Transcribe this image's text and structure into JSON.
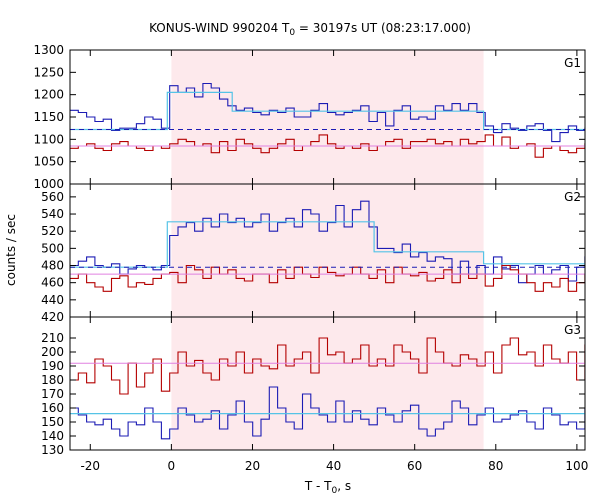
{
  "chart_data": {
    "title": "KONUS-WIND 990204 T",
    "title_sub": "0",
    "title_rest": " = 30197s UT (08:23:17.000)",
    "ylabel": "counts / sec",
    "xlabel": "T - T",
    "xlabel_sub": "0",
    "xlabel_rest": ", s",
    "xlim": [
      -25,
      102
    ],
    "xticks": [
      -20,
      0,
      20,
      40,
      60,
      80,
      100
    ],
    "shaded_interval": [
      0,
      77
    ],
    "colors": {
      "blue": "#1c1cb4",
      "red": "#b40000",
      "fit": "#55c3e6",
      "bg": "#e080e0",
      "dash": "#1c1cb4",
      "shade": "#fde9ec"
    },
    "panels": [
      {
        "name": "G1",
        "type": "line",
        "ylim": [
          1000,
          1300
        ],
        "yticks": [
          1000,
          1050,
          1100,
          1150,
          1200,
          1250,
          1300
        ],
        "series": [
          {
            "color": "blue",
            "x0": -25,
            "dt": 2.048,
            "values": [
              1165,
              1160,
              1150,
              1140,
              1145,
              1120,
              1125,
              1125,
              1135,
              1150,
              1145,
              1125,
              1220,
              1205,
              1215,
              1195,
              1225,
              1215,
              1190,
              1175,
              1165,
              1170,
              1160,
              1155,
              1165,
              1160,
              1170,
              1150,
              1150,
              1165,
              1180,
              1160,
              1155,
              1160,
              1165,
              1175,
              1140,
              1160,
              1130,
              1165,
              1175,
              1145,
              1150,
              1145,
              1175,
              1165,
              1180,
              1165,
              1180,
              1160,
              1130,
              1115,
              1135,
              1125,
              1120,
              1130,
              1135,
              1120,
              1095,
              1115,
              1130,
              1120,
              1125
            ]
          },
          {
            "color": "red",
            "x0": -25,
            "dt": 2.048,
            "values": [
              1080,
              1085,
              1090,
              1080,
              1075,
              1090,
              1095,
              1085,
              1080,
              1075,
              1085,
              1080,
              1090,
              1100,
              1095,
              1085,
              1090,
              1070,
              1095,
              1075,
              1100,
              1090,
              1080,
              1070,
              1080,
              1090,
              1100,
              1075,
              1085,
              1095,
              1110,
              1090,
              1080,
              1085,
              1080,
              1090,
              1075,
              1085,
              1095,
              1100,
              1080,
              1095,
              1095,
              1100,
              1090,
              1095,
              1085,
              1100,
              1090,
              1095,
              1110,
              1085,
              1105,
              1080,
              1085,
              1090,
              1060,
              1080,
              1085,
              1075,
              1070,
              1080,
              1090
            ]
          },
          {
            "color": "fit",
            "steps": [
              [
                -25,
                -1,
                1122
              ],
              [
                -1,
                15,
                1205
              ],
              [
                15,
                77,
                1163
              ],
              [
                77,
                102,
                1122
              ]
            ]
          },
          {
            "color": "bg",
            "flat": 1085
          },
          {
            "color": "dash",
            "flat": 1122,
            "dashed": true
          }
        ]
      },
      {
        "name": "G2",
        "type": "line",
        "ylim": [
          420,
          575
        ],
        "yticks": [
          420,
          440,
          460,
          480,
          500,
          520,
          540,
          560
        ],
        "series": [
          {
            "color": "blue",
            "x0": -25,
            "dt": 2.048,
            "values": [
              480,
              485,
              490,
              480,
              478,
              482,
              470,
              476,
              480,
              478,
              475,
              480,
              515,
              525,
              530,
              520,
              535,
              525,
              540,
              530,
              535,
              525,
              530,
              540,
              520,
              530,
              535,
              525,
              545,
              540,
              520,
              530,
              550,
              525,
              545,
              555,
              525,
              500,
              500,
              495,
              505,
              490,
              495,
              485,
              490,
              488,
              470,
              485,
              470,
              480,
              470,
              490,
              476,
              480,
              460,
              470,
              480,
              470,
              475,
              480,
              462,
              478,
              490
            ]
          },
          {
            "color": "red",
            "x0": -25,
            "dt": 2.048,
            "values": [
              465,
              470,
              460,
              455,
              450,
              465,
              468,
              455,
              460,
              458,
              465,
              470,
              472,
              460,
              480,
              475,
              465,
              478,
              470,
              475,
              465,
              462,
              470,
              470,
              460,
              475,
              465,
              478,
              470,
              466,
              478,
              472,
              468,
              470,
              478,
              470,
              465,
              475,
              460,
              478,
              470,
              468,
              472,
              462,
              465,
              475,
              460,
              470,
              465,
              470,
              456,
              465,
              480,
              475,
              470,
              460,
              450,
              460,
              455,
              465,
              450,
              460,
              470
            ]
          },
          {
            "color": "fit",
            "steps": [
              [
                -25,
                -1,
                478
              ],
              [
                -1,
                50,
                531
              ],
              [
                50,
                77,
                496
              ],
              [
                77,
                102,
                482
              ]
            ]
          },
          {
            "color": "bg",
            "flat": 470
          },
          {
            "color": "dash",
            "flat": 478,
            "dashed": true
          }
        ]
      },
      {
        "name": "G3",
        "type": "line",
        "ylim": [
          130,
          225
        ],
        "yticks": [
          130,
          140,
          150,
          160,
          170,
          180,
          190,
          200,
          210
        ],
        "series": [
          {
            "color": "red",
            "x0": -25,
            "dt": 2.048,
            "values": [
              180,
              185,
              178,
              195,
              190,
              180,
              170,
              192,
              175,
              185,
              195,
              172,
              185,
              200,
              190,
              194,
              185,
              180,
              195,
              190,
              200,
              185,
              195,
              190,
              188,
              205,
              190,
              195,
              200,
              185,
              210,
              198,
              200,
              192,
              195,
              205,
              190,
              195,
              190,
              205,
              200,
              195,
              185,
              210,
              200,
              192,
              190,
              198,
              195,
              190,
              200,
              185,
              205,
              210,
              198,
              200,
              190,
              205,
              195,
              192,
              200,
              180,
              205
            ]
          },
          {
            "color": "blue",
            "x0": -25,
            "dt": 2.048,
            "values": [
              160,
              155,
              150,
              148,
              152,
              145,
              140,
              150,
              148,
              160,
              150,
              138,
              145,
              160,
              155,
              150,
              152,
              158,
              145,
              155,
              165,
              150,
              140,
              152,
              175,
              160,
              150,
              145,
              170,
              160,
              155,
              150,
              165,
              150,
              158,
              152,
              148,
              160,
              155,
              150,
              158,
              162,
              145,
              140,
              145,
              150,
              165,
              160,
              148,
              155,
              160,
              150,
              152,
              155,
              158,
              150,
              145,
              160,
              155,
              148,
              150,
              145,
              160
            ]
          },
          {
            "color": "fit",
            "steps": [
              [
                -25,
                102,
                156
              ]
            ]
          },
          {
            "color": "bg",
            "flat": 192
          }
        ]
      }
    ]
  }
}
